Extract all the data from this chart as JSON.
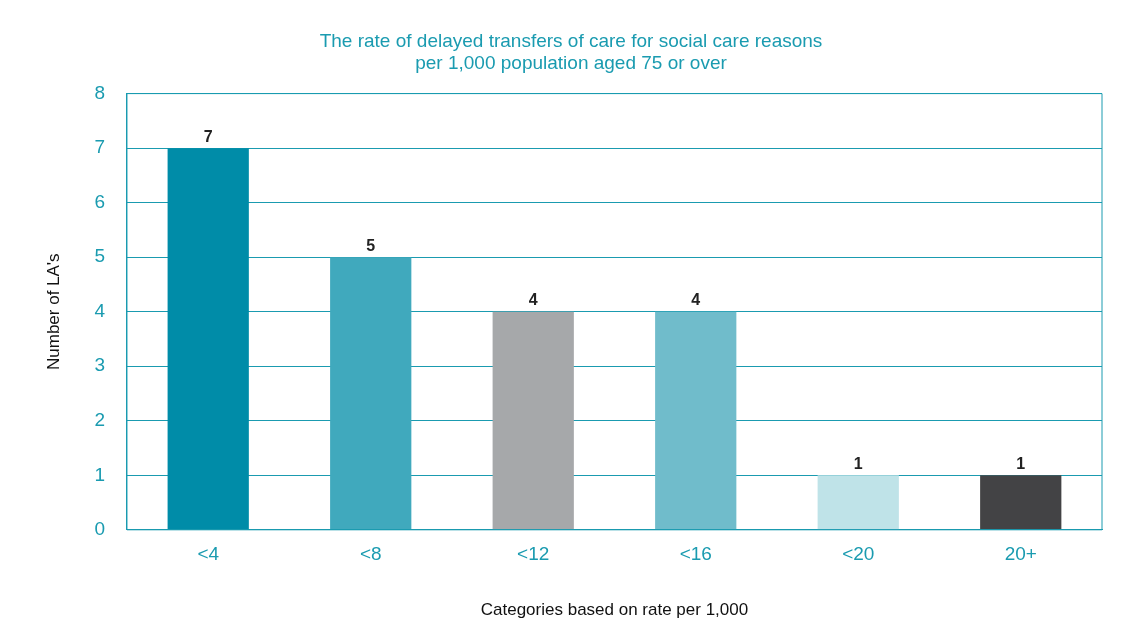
{
  "chart_data": {
    "type": "bar",
    "title": [
      "The rate of delayed transfers of care for social care reasons",
      "per 1,000 population aged 75 or over"
    ],
    "xlabel": "Categories based on rate per 1,000",
    "ylabel": "Number of LA's",
    "categories": [
      "<4",
      "<8",
      "<12",
      "<16",
      "<20",
      "20+"
    ],
    "values": [
      7,
      5,
      4,
      4,
      1,
      1
    ],
    "colors": [
      "#008ca8",
      "#40a9bd",
      "#a6a8aa",
      "#70bccb",
      "#bfe3e8",
      "#434345"
    ],
    "ylim": [
      0,
      8
    ],
    "yticks": [
      0,
      1,
      2,
      3,
      4,
      5,
      6,
      7,
      8
    ],
    "grid": "y",
    "data_labels": true,
    "legend": false
  }
}
